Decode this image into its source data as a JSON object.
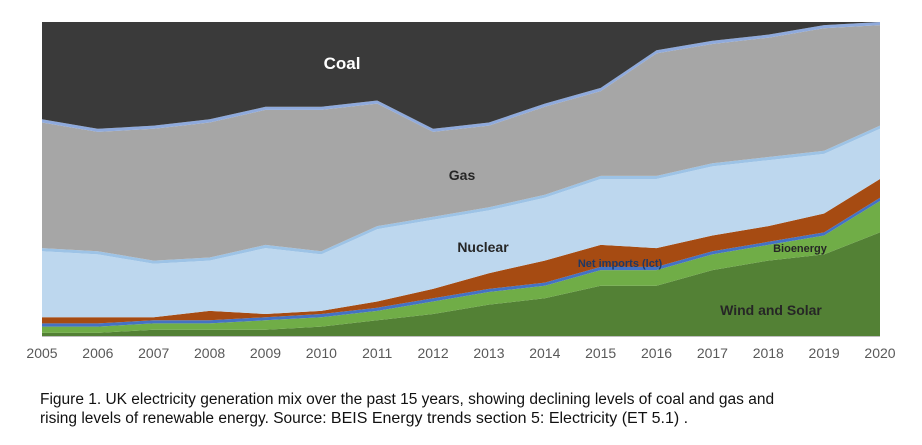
{
  "chart_data": {
    "type": "area",
    "stacked": true,
    "percent_stacked": true,
    "x": [
      2005,
      2006,
      2007,
      2008,
      2009,
      2010,
      2011,
      2012,
      2013,
      2014,
      2015,
      2016,
      2017,
      2018,
      2019,
      2020
    ],
    "xlim": [
      2005,
      2020
    ],
    "ylim": [
      0,
      100
    ],
    "grid": false,
    "legend": "none",
    "series": [
      {
        "name": "Wind and Solar",
        "color": "#538135",
        "values": [
          1,
          1,
          2,
          2,
          2,
          3,
          5,
          7,
          10,
          12,
          16,
          16,
          21,
          24,
          26,
          33
        ]
      },
      {
        "name": "",
        "color": "#70ad47",
        "values": [
          2,
          2,
          2,
          2,
          3,
          3,
          3,
          4,
          4,
          4,
          5,
          5,
          5,
          5,
          6,
          10
        ]
      },
      {
        "name": "Bioenergy",
        "color": "#4472c4",
        "values": [
          1,
          1,
          1,
          1,
          1,
          1,
          1,
          1,
          1,
          1,
          1,
          1,
          1,
          1,
          1,
          1
        ]
      },
      {
        "name": "Net imports (lct)",
        "color": "#a64b12",
        "values": [
          2,
          2,
          1,
          3,
          1,
          1,
          2,
          3,
          5,
          7,
          7,
          6,
          5,
          5,
          6,
          6
        ]
      },
      {
        "name": "Nuclear",
        "color": "#bdd7ee",
        "values": [
          21,
          20,
          17,
          16,
          21,
          18,
          23,
          22,
          20,
          20,
          21,
          22,
          22,
          21,
          19,
          16
        ]
      },
      {
        "name": "",
        "color": "#9dc3e6",
        "values": [
          1,
          1,
          1,
          1,
          1,
          1,
          1,
          1,
          1,
          1,
          1,
          1,
          1,
          1,
          1,
          1
        ]
      },
      {
        "name": "Gas",
        "color": "#a6a6a6",
        "values": [
          40,
          38,
          42,
          43,
          43,
          45,
          39,
          27,
          26,
          28,
          27,
          39,
          38,
          38,
          39,
          32
        ]
      },
      {
        "name": "",
        "color": "#8faadc",
        "values": [
          1,
          1,
          1,
          1,
          1,
          1,
          1,
          1,
          1,
          1,
          1,
          1,
          1,
          1,
          1,
          1
        ]
      },
      {
        "name": "Coal",
        "color": "#3a3a3a",
        "values": [
          31,
          34,
          33,
          31,
          27,
          27,
          25,
          34,
          32,
          26,
          21,
          9,
          6,
          4,
          1,
          0
        ]
      }
    ]
  },
  "caption": {
    "line1": "Figure 1. UK electricity generation mix over the past 15 years, showing declining levels of coal and gas and",
    "line2_prefix": "rising levels of renewable energy. Source: ",
    "line2_source": "BEIS Energy trends section 5: Electricity (ET 5.1) ."
  }
}
